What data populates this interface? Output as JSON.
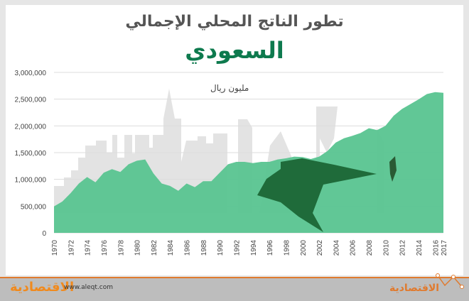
{
  "title_line1": "تطور الناتج المحلي الإجمالي",
  "title_line2": "السعودي",
  "unit": "مليون ريال",
  "footer": {
    "logo_text": "الاقتصادية",
    "url": "www.aleqt.com",
    "brand_text": "الاقتصادية"
  },
  "colors": {
    "area": "#5cc593",
    "title_accent": "#0e7a4e",
    "footer_line": "#e07a2e"
  },
  "chart_data": {
    "type": "area",
    "title": "تطور الناتج المحلي الإجمالي السعودي",
    "ylabel": "مليون ريال",
    "ylim": [
      0,
      3000000
    ],
    "yticks": [
      0,
      500000,
      1000000,
      1500000,
      2000000,
      2500000,
      3000000
    ],
    "ytick_labels": [
      "0",
      "500,000",
      "1,000,000",
      "1,500,000",
      "2,000,000",
      "2,500,000",
      "3,000,000"
    ],
    "xtick_labels": [
      "1970",
      "1972",
      "1974",
      "1976",
      "1978",
      "1980",
      "1982",
      "1984",
      "1986",
      "1988",
      "1990",
      "1992",
      "1994",
      "1996",
      "1998",
      "2000",
      "2002",
      "2004",
      "2006",
      "2008",
      "2010",
      "2012",
      "2014",
      "2016",
      "2017"
    ],
    "grid": true,
    "x": [
      1970,
      1971,
      1972,
      1973,
      1974,
      1975,
      1976,
      1977,
      1978,
      1979,
      1980,
      1981,
      1982,
      1983,
      1984,
      1985,
      1986,
      1987,
      1988,
      1989,
      1990,
      1991,
      1992,
      1993,
      1994,
      1995,
      1996,
      1997,
      1998,
      1999,
      2000,
      2001,
      2002,
      2003,
      2004,
      2005,
      2006,
      2007,
      2008,
      2009,
      2010,
      2011,
      2012,
      2013,
      2014,
      2015,
      2016,
      2017
    ],
    "values": [
      495000,
      585000,
      742000,
      922000,
      1043000,
      945000,
      1124000,
      1192000,
      1138000,
      1282000,
      1349000,
      1372000,
      1111000,
      922000,
      877000,
      787000,
      922000,
      855000,
      967000,
      967000,
      1124000,
      1282000,
      1327000,
      1327000,
      1304000,
      1327000,
      1327000,
      1372000,
      1394000,
      1426000,
      1417000,
      1381000,
      1426000,
      1529000,
      1687000,
      1768000,
      1813000,
      1867000,
      1957000,
      1921000,
      2001000,
      2190000,
      2316000,
      2406000,
      2496000,
      2595000,
      2631000,
      2618000
    ]
  }
}
